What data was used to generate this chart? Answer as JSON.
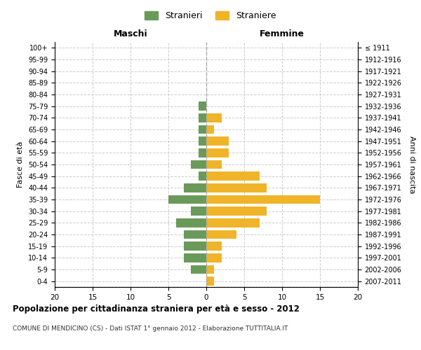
{
  "age_groups": [
    "100+",
    "95-99",
    "90-94",
    "85-89",
    "80-84",
    "75-79",
    "70-74",
    "65-69",
    "60-64",
    "55-59",
    "50-54",
    "45-49",
    "40-44",
    "35-39",
    "30-34",
    "25-29",
    "20-24",
    "15-19",
    "10-14",
    "5-9",
    "0-4"
  ],
  "birth_years": [
    "≤ 1911",
    "1912-1916",
    "1917-1921",
    "1922-1926",
    "1927-1931",
    "1932-1936",
    "1937-1941",
    "1942-1946",
    "1947-1951",
    "1952-1956",
    "1957-1961",
    "1962-1966",
    "1967-1971",
    "1972-1976",
    "1977-1981",
    "1982-1986",
    "1987-1991",
    "1992-1996",
    "1997-2001",
    "2002-2006",
    "2007-2011"
  ],
  "maschi": [
    0,
    0,
    0,
    0,
    0,
    1,
    1,
    1,
    1,
    1,
    2,
    1,
    3,
    5,
    2,
    4,
    3,
    3,
    3,
    2,
    0
  ],
  "femmine": [
    0,
    0,
    0,
    0,
    0,
    0,
    2,
    1,
    3,
    3,
    2,
    7,
    8,
    15,
    8,
    7,
    4,
    2,
    2,
    1,
    1
  ],
  "maschi_color": "#6a9a5a",
  "femmine_color": "#f0b429",
  "title": "Popolazione per cittadinanza straniera per età e sesso - 2012",
  "subtitle": "COMUNE DI MENDICINO (CS) - Dati ISTAT 1° gennaio 2012 - Elaborazione TUTTITALIA.IT",
  "xlabel_left": "Maschi",
  "xlabel_right": "Femmine",
  "ylabel_left": "Fasce di età",
  "ylabel_right": "Anni di nascita",
  "legend_stranieri": "Stranieri",
  "legend_straniere": "Straniere",
  "xlim": 20,
  "background_color": "#ffffff",
  "grid_color": "#cccccc"
}
